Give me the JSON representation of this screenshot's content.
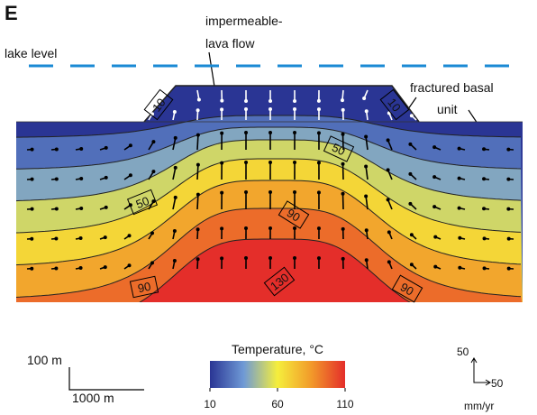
{
  "panel_label": "E",
  "annotations": {
    "impermeable_1": "impermeable-",
    "impermeable_2": "lava flow",
    "lake_level": "lake level",
    "fractured_1": "fractured basal",
    "fractured_2": "unit"
  },
  "contour_labels": [
    "10",
    "10",
    "50",
    "50",
    "90",
    "90",
    "130",
    "90"
  ],
  "colorbar": {
    "title": "Temperature, °C",
    "lim": [
      10,
      110
    ],
    "ticks": [
      10,
      60,
      110
    ],
    "colors": [
      "#2a3594",
      "#6f9ad6",
      "#f5ee3c",
      "#f29a2a",
      "#e42e2a"
    ]
  },
  "scale_bar": {
    "vertical": "100 m",
    "horizontal": "1000 m"
  },
  "velocity_scale": {
    "vertical": "50",
    "horizontal": "50",
    "unit": "mm/yr"
  }
}
